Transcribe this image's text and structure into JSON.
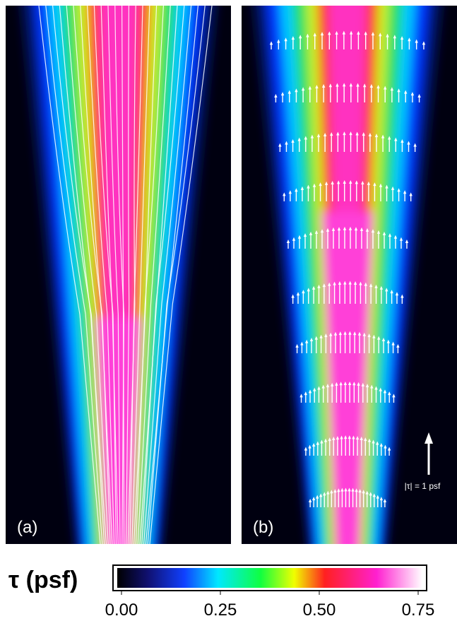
{
  "panels": [
    {
      "label": "(a)"
    },
    {
      "label": "(b)"
    }
  ],
  "scale_arrow": {
    "label": "|τ| = 1 psf"
  },
  "colorbar": {
    "label": "τ (psf)",
    "ticks": [
      {
        "value": 0,
        "label": "0.00"
      },
      {
        "value": 0.25,
        "label": "0.25"
      },
      {
        "value": 0.5,
        "label": "0.50"
      },
      {
        "value": 0.75,
        "label": "0.75"
      }
    ]
  }
}
